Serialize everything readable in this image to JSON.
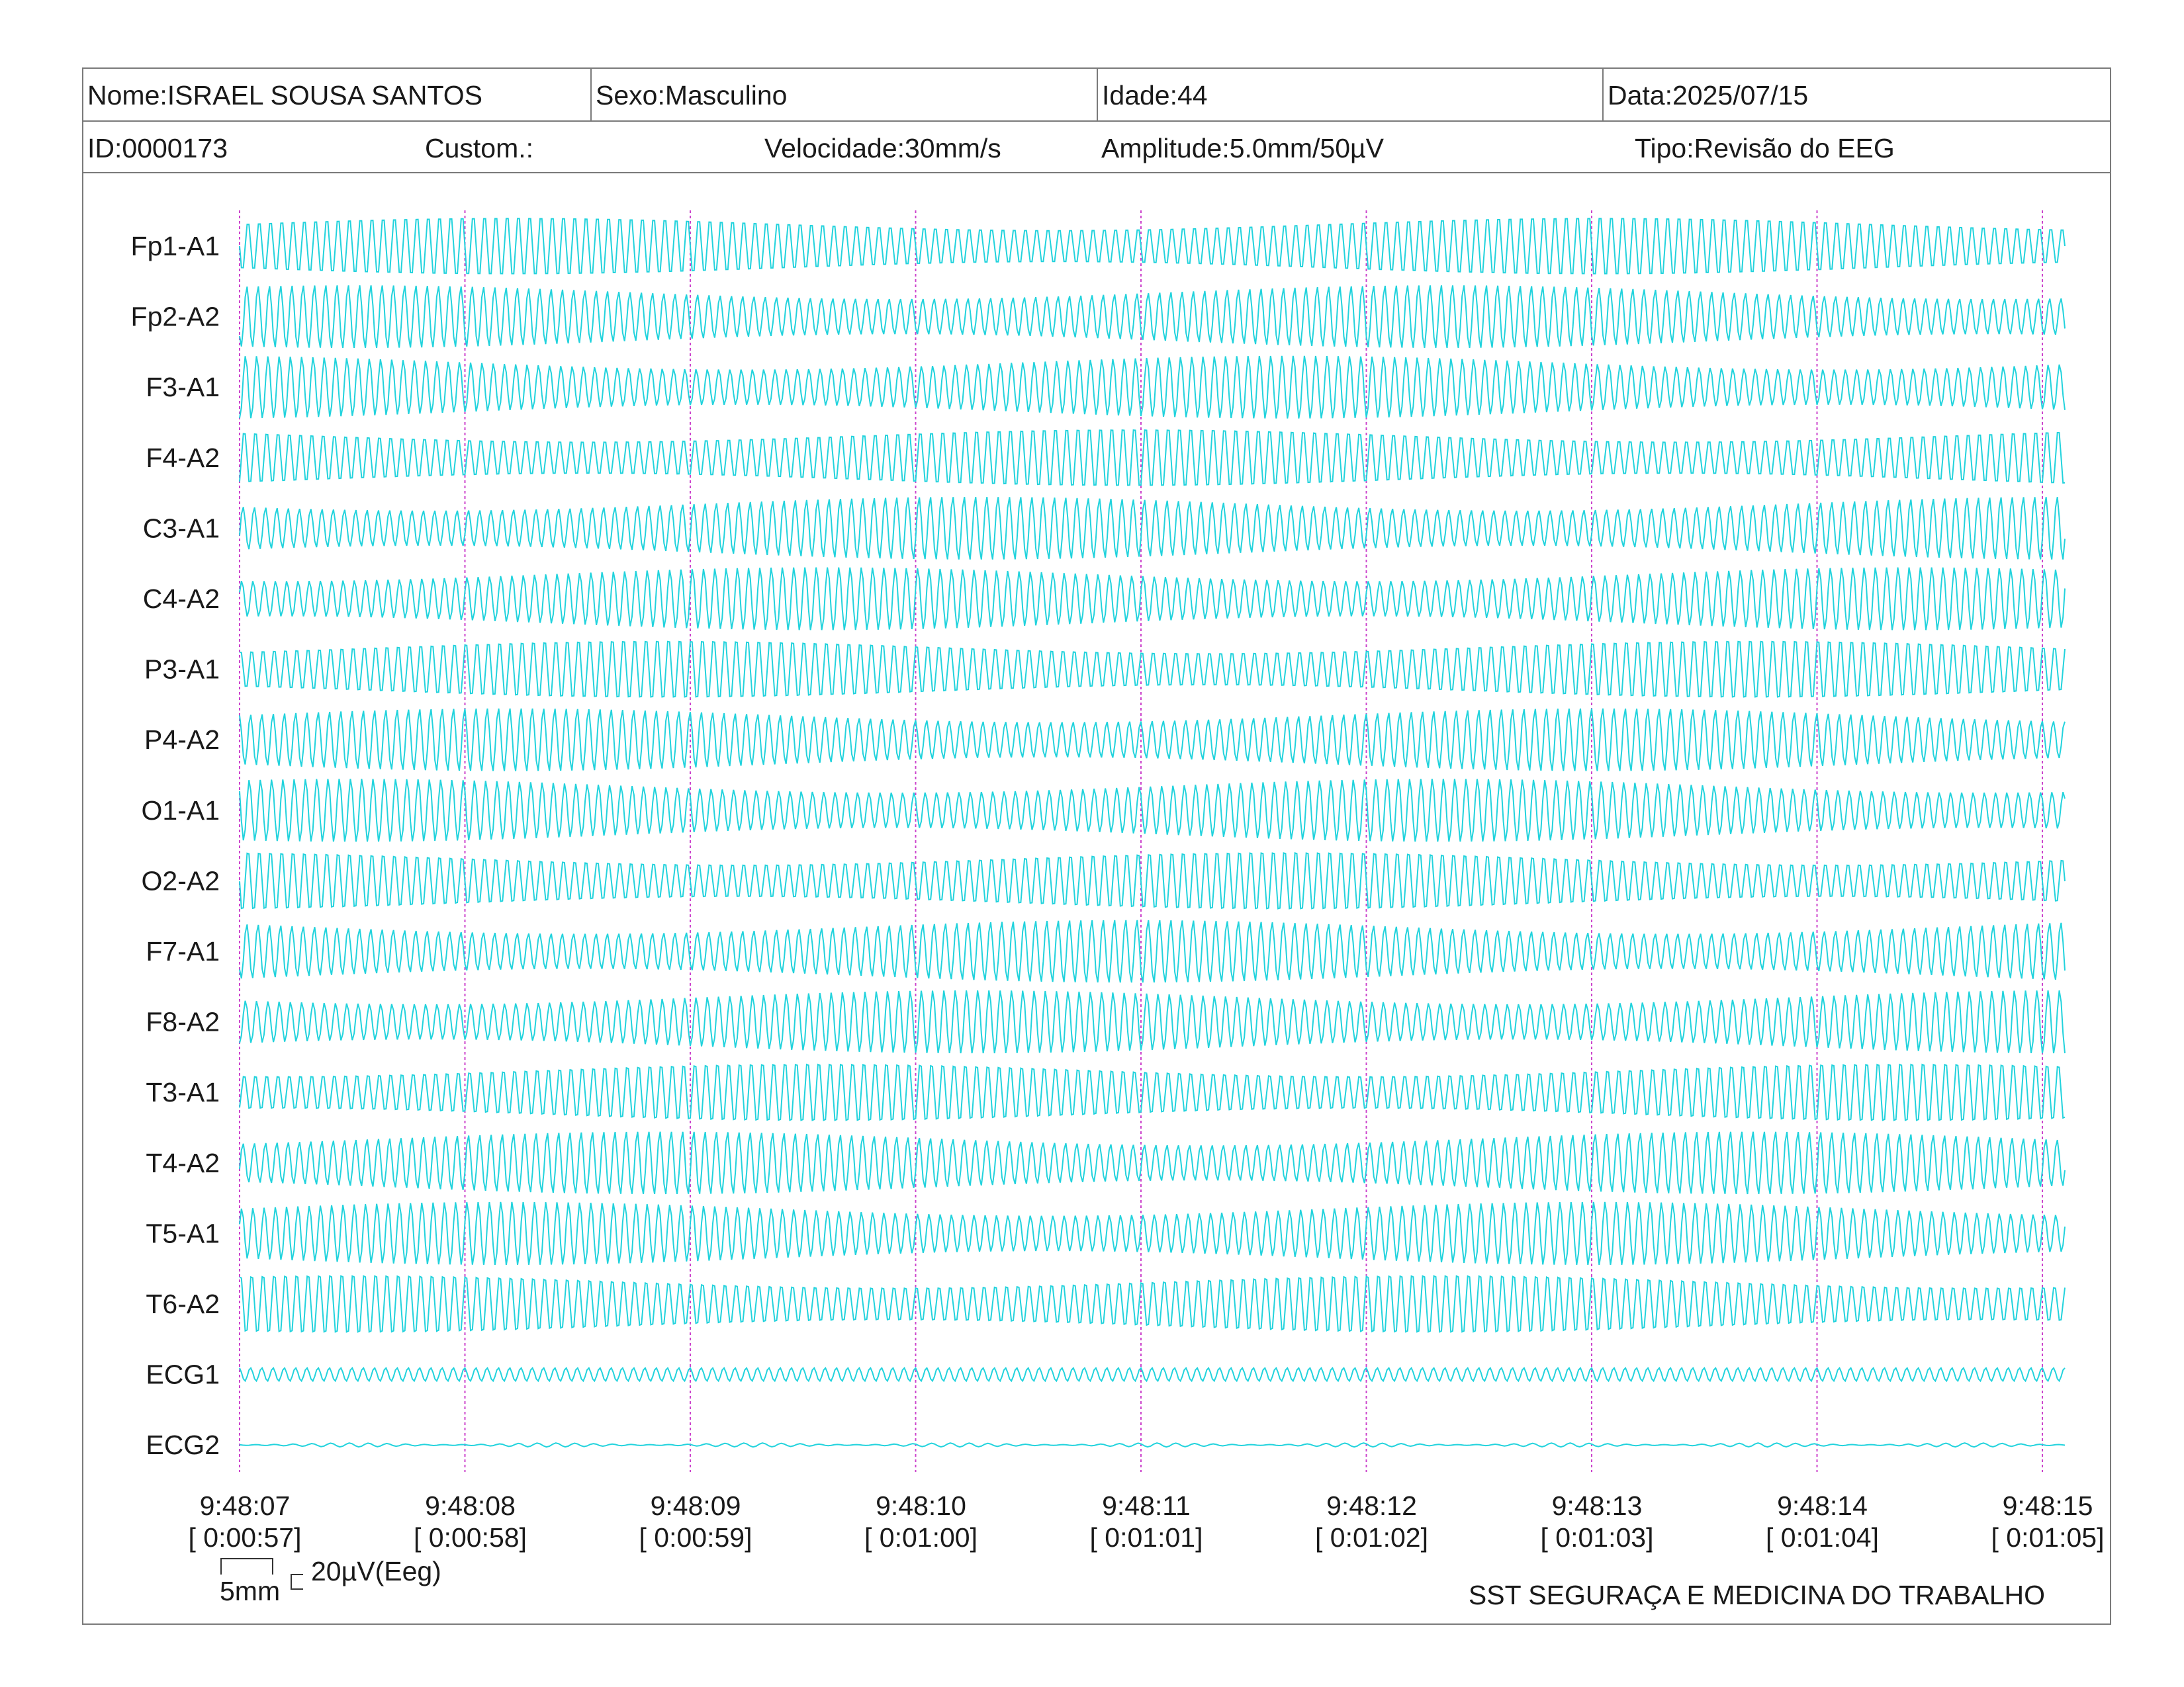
{
  "header": {
    "name": "Nome:ISRAEL SOUSA SANTOS",
    "sex": "Sexo:Masculino",
    "age": "Idade:44",
    "date": "Data:2025/07/15",
    "id": "ID:0000173",
    "custom": "Custom.:",
    "speed": "Velocidade:30mm/s",
    "amplitude": "Amplitude:5.0mm/50µV",
    "type": "Tipo:Revisão do EEG"
  },
  "scale": {
    "time_label": "5mm",
    "amp_label": "20µV(Eeg)"
  },
  "footer": {
    "org": "SST SEGURAÇA E MEDICINA DO TRABALHO"
  },
  "colors": {
    "trace": "#22d3dd",
    "marker": "#cc44cc",
    "text": "#1a1a1a",
    "border": "#7a7a7a"
  },
  "chart_data": {
    "type": "line",
    "channels": [
      "Fp1-A1",
      "Fp2-A2",
      "F3-A1",
      "F4-A2",
      "C3-A1",
      "C4-A2",
      "P3-A1",
      "P4-A2",
      "O1-A1",
      "O2-A2",
      "F7-A1",
      "F8-A2",
      "T3-A1",
      "T4-A2",
      "T5-A1",
      "T6-A2",
      "ECG1",
      "ECG2"
    ],
    "time_ticks": [
      "9:48:07",
      "9:48:08",
      "9:48:09",
      "9:48:10",
      "9:48:11",
      "9:48:12",
      "9:48:13",
      "9:48:14",
      "9:48:15"
    ],
    "elapsed_ticks": [
      "[ 0:00:57]",
      "[ 0:00:58]",
      "[ 0:00:59]",
      "[ 0:01:00]",
      "[ 0:01:01]",
      "[ 0:01:02]",
      "[ 0:01:03]",
      "[ 0:01:04]",
      "[ 0:01:05]"
    ],
    "duration_s": 8.1,
    "eeg_frequency_hz": 20,
    "ecg1_frequency_hz": 20,
    "grid": false
  }
}
